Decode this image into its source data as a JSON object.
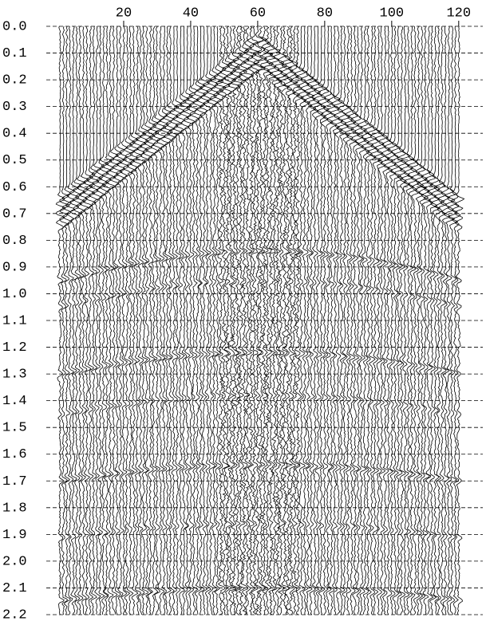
{
  "chart_data": {
    "type": "wiggle",
    "xlim": [
      0,
      121
    ],
    "xticks": [
      20,
      40,
      60,
      80,
      100,
      120
    ],
    "ylim": [
      0,
      2.2
    ],
    "y_inverted": true,
    "yticks": [
      {
        "value": 0,
        "label": "0.0"
      },
      0.1,
      0.2,
      0.3,
      0.4,
      0.5,
      0.6,
      0.7,
      0.8,
      0.9,
      {
        "value": 1,
        "label": "1.0"
      },
      1.1,
      1.2,
      1.3,
      1.4,
      1.5,
      1.6,
      1.7,
      1.8,
      1.9,
      {
        "value": 2,
        "label": "2.0"
      },
      2.1,
      2.2
    ],
    "grid": true,
    "color": "#000000"
  }
}
